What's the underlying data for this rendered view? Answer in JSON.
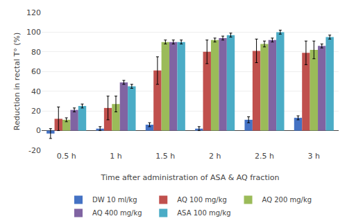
{
  "chart_data": {
    "type": "bar",
    "xlabel": "Time after administration of ASA & AQ fraction",
    "ylabel": "Reduction in rectal T° (%)",
    "categories": [
      "0.5 h",
      "1 h",
      "1.5 h",
      "2 h",
      "2.5 h",
      "3 h"
    ],
    "series": [
      {
        "name": "DW 10 ml/kg",
        "color": "#4472C4",
        "values": [
          -3,
          2,
          6,
          2,
          11,
          13
        ],
        "errors": [
          5,
          2,
          2,
          2,
          3,
          2
        ]
      },
      {
        "name": "AQ 100 mg/kg",
        "color": "#C0504D",
        "values": [
          12,
          23,
          61,
          80,
          81,
          79
        ],
        "errors": [
          12,
          12,
          14,
          12,
          12,
          12
        ]
      },
      {
        "name": "AQ 200 mg/kg",
        "color": "#9BBB59",
        "values": [
          11,
          27,
          90,
          92,
          88,
          82
        ],
        "errors": [
          2,
          8,
          2,
          2,
          3,
          9
        ]
      },
      {
        "name": "AQ 400 mg/kg",
        "color": "#8064A2",
        "values": [
          21,
          49,
          90,
          94,
          92,
          86
        ],
        "errors": [
          2,
          2,
          2,
          2,
          2,
          2
        ]
      },
      {
        "name": "ASA 100 mg/kg",
        "color": "#4BACC6",
        "values": [
          25,
          45,
          90,
          97,
          100,
          95
        ],
        "errors": [
          2,
          2,
          2,
          2,
          2,
          2
        ]
      }
    ],
    "ylim": [
      -20,
      120
    ],
    "yticks": [
      -20,
      0,
      20,
      40,
      60,
      80,
      100,
      120
    ],
    "grid": true,
    "legend": "bottom"
  }
}
